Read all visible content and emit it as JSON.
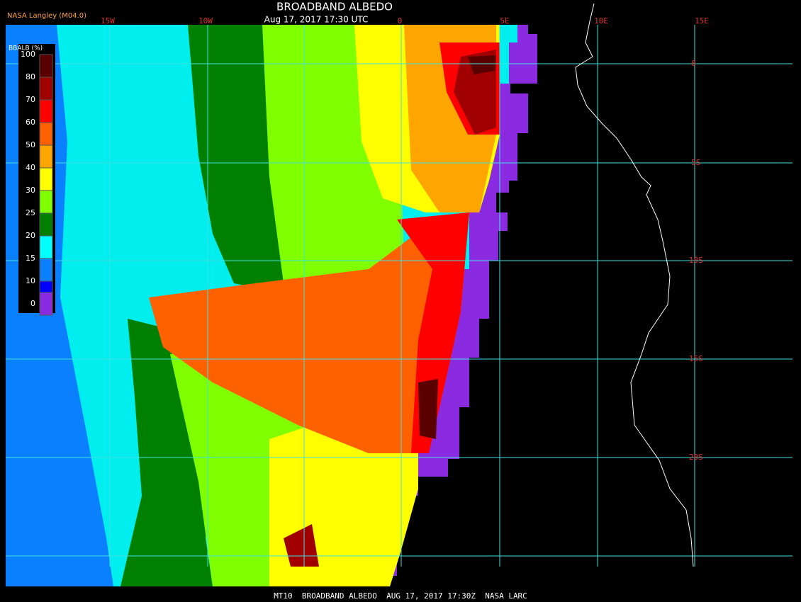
{
  "header": {
    "title": "BROADBAND ALBEDO",
    "timestamp": "Aug 17, 2017 17:30 UTC",
    "credit": "NASA Langley (M04.0)"
  },
  "legend": {
    "label": "BBALB (%)",
    "ticks": [
      100,
      80,
      70,
      60,
      50,
      40,
      30,
      25,
      20,
      15,
      10,
      0
    ],
    "colors": [
      "#5a0000",
      "#a00000",
      "#ff0000",
      "#ff6000",
      "#ffa500",
      "#ffff00",
      "#80ff00",
      "#008000",
      "#00ffff",
      "#0a80ff",
      "#0000ff",
      "#8a2be2"
    ]
  },
  "longitude_labels": [
    "15W",
    "10W",
    "0",
    "5E",
    "10E",
    "15E"
  ],
  "latitude_labels": [
    "0",
    "5S",
    "10S",
    "15S",
    "20S"
  ],
  "footer": "MT10  BROADBAND ALBEDO  AUG 17, 2017 17:30Z  NASA LARC"
}
